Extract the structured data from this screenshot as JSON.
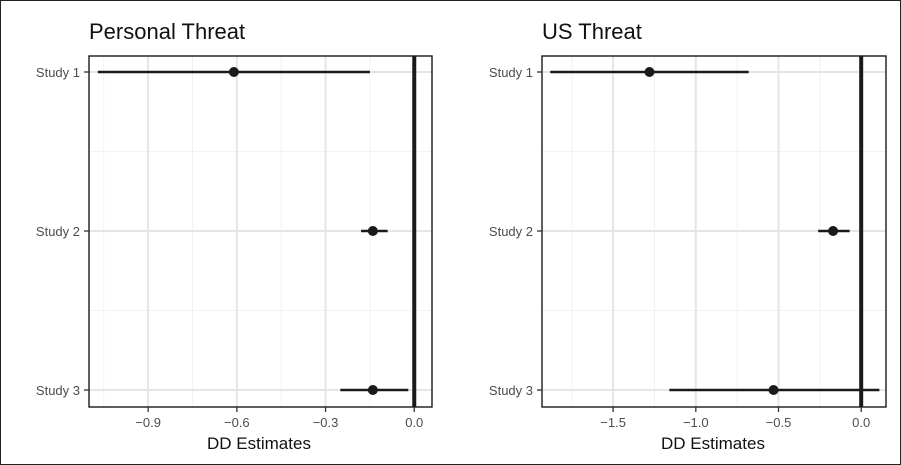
{
  "chart_data": [
    {
      "type": "scatter",
      "title": "Personal Threat",
      "xlabel": "DD Estimates",
      "ylabel": "",
      "categories": [
        "Study 1",
        "Study 2",
        "Study 3"
      ],
      "estimates": [
        -0.61,
        -0.14,
        -0.14
      ],
      "ci_low": [
        -1.07,
        -0.18,
        -0.25
      ],
      "ci_high": [
        -0.15,
        -0.09,
        -0.02
      ],
      "xlim": [
        -1.1,
        0.06
      ],
      "x_ticks": [
        -0.9,
        -0.6,
        -0.3,
        0.0
      ],
      "x_tick_labels": [
        "−0.9",
        "−0.6",
        "−0.3",
        "0.0"
      ],
      "reference_line": 0,
      "grid": true
    },
    {
      "type": "scatter",
      "title": "US Threat",
      "xlabel": "DD Estimates",
      "ylabel": "",
      "categories": [
        "Study 1",
        "Study 2",
        "Study 3"
      ],
      "estimates": [
        -1.28,
        -0.17,
        -0.53
      ],
      "ci_low": [
        -1.88,
        -0.26,
        -1.16
      ],
      "ci_high": [
        -0.68,
        -0.07,
        0.11
      ],
      "xlim": [
        -1.93,
        0.15
      ],
      "x_ticks": [
        -1.5,
        -1.0,
        -0.5,
        0.0
      ],
      "x_tick_labels": [
        "−1.5",
        "−1.0",
        "−0.5",
        "0.0"
      ],
      "reference_line": 0,
      "grid": true
    }
  ]
}
